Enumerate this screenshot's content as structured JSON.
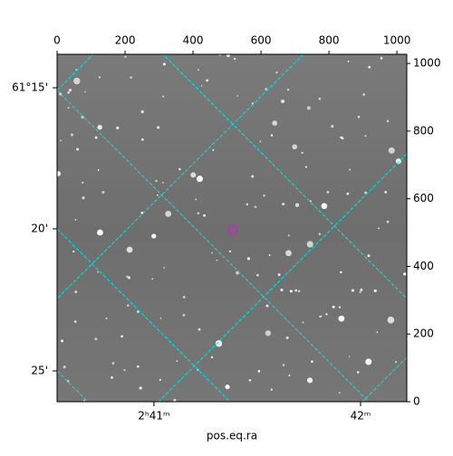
{
  "chart_data": {
    "type": "image",
    "xlim": [
      0,
      1029
    ],
    "ylim": [
      0,
      1027
    ],
    "xticks": [
      0,
      200,
      400,
      600,
      800,
      1000
    ],
    "yticks": [
      0,
      200,
      400,
      600,
      800,
      1000
    ],
    "ra_ticks": [
      {
        "value": 285,
        "label": "2ʰ41ᵐ"
      },
      {
        "value": 893,
        "label": "42ᵐ"
      }
    ],
    "dec_ticks": [
      {
        "value": 928,
        "label": "61°15'"
      },
      {
        "value": 511,
        "label": "20'"
      },
      {
        "value": 91,
        "label": "25'"
      }
    ],
    "xlabel": "pos.eq.ra",
    "grid_color": "#00e5e5",
    "marker_color": "#d020d0"
  }
}
